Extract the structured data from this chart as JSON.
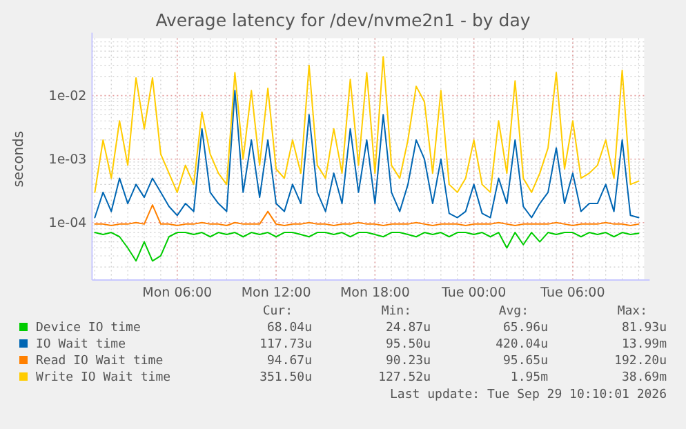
{
  "chart_data": {
    "type": "line",
    "title": "Average latency for /dev/nvme2n1 - by day",
    "ylabel": "seconds",
    "log": "y",
    "grid": true,
    "legend": "bottom",
    "marker": "none",
    "line_style": "solid",
    "xlim": [
      "2026-09-28T00:50",
      "2026-09-29T10:20"
    ],
    "xticks": [
      {
        "value": "2026-09-28T06:00",
        "label": "Mon 06:00"
      },
      {
        "value": "2026-09-28T12:00",
        "label": "Mon 12:00"
      },
      {
        "value": "2026-09-28T18:00",
        "label": "Mon 18:00"
      },
      {
        "value": "2026-09-29T00:00",
        "label": "Tue 00:00"
      },
      {
        "value": "2026-09-29T06:00",
        "label": "Tue 06:00"
      }
    ],
    "ylim": [
      1.25e-05,
      0.08
    ],
    "yticks": [
      {
        "value": 0.0001,
        "label": "1e-04"
      },
      {
        "value": 0.001,
        "label": "1e-03"
      },
      {
        "value": 0.01,
        "label": "1e-02"
      }
    ],
    "x": [
      "2026-09-28T01:00",
      "2026-09-28T01:30",
      "2026-09-28T02:00",
      "2026-09-28T02:30",
      "2026-09-28T03:00",
      "2026-09-28T03:30",
      "2026-09-28T04:00",
      "2026-09-28T04:30",
      "2026-09-28T05:00",
      "2026-09-28T05:30",
      "2026-09-28T06:00",
      "2026-09-28T06:30",
      "2026-09-28T07:00",
      "2026-09-28T07:30",
      "2026-09-28T08:00",
      "2026-09-28T08:30",
      "2026-09-28T09:00",
      "2026-09-28T09:30",
      "2026-09-28T10:00",
      "2026-09-28T10:30",
      "2026-09-28T11:00",
      "2026-09-28T11:30",
      "2026-09-28T12:00",
      "2026-09-28T12:30",
      "2026-09-28T13:00",
      "2026-09-28T13:30",
      "2026-09-28T14:00",
      "2026-09-28T14:30",
      "2026-09-28T15:00",
      "2026-09-28T15:30",
      "2026-09-28T16:00",
      "2026-09-28T16:30",
      "2026-09-28T17:00",
      "2026-09-28T17:30",
      "2026-09-28T18:00",
      "2026-09-28T18:30",
      "2026-09-28T19:00",
      "2026-09-28T19:30",
      "2026-09-28T20:00",
      "2026-09-28T20:30",
      "2026-09-28T21:00",
      "2026-09-28T21:30",
      "2026-09-28T22:00",
      "2026-09-28T22:30",
      "2026-09-28T23:00",
      "2026-09-28T23:30",
      "2026-09-29T00:00",
      "2026-09-29T00:30",
      "2026-09-29T01:00",
      "2026-09-29T01:30",
      "2026-09-29T02:00",
      "2026-09-29T02:30",
      "2026-09-29T03:00",
      "2026-09-29T03:30",
      "2026-09-29T04:00",
      "2026-09-29T04:30",
      "2026-09-29T05:00",
      "2026-09-29T05:30",
      "2026-09-29T06:00",
      "2026-09-29T06:30",
      "2026-09-29T07:00",
      "2026-09-29T07:30",
      "2026-09-29T08:00",
      "2026-09-29T08:30",
      "2026-09-29T09:00",
      "2026-09-29T09:30",
      "2026-09-29T10:00"
    ],
    "series": [
      {
        "name": "Device IO time",
        "color": "#00cc00",
        "values": [
          7e-05,
          6.5e-05,
          7e-05,
          6e-05,
          4e-05,
          2.5e-05,
          5e-05,
          2.5e-05,
          3e-05,
          6e-05,
          7e-05,
          7e-05,
          6.5e-05,
          7e-05,
          6e-05,
          7e-05,
          6.5e-05,
          7e-05,
          6e-05,
          7e-05,
          6.5e-05,
          7e-05,
          6e-05,
          7e-05,
          7e-05,
          6.5e-05,
          6e-05,
          7e-05,
          7e-05,
          6.5e-05,
          7e-05,
          6e-05,
          7e-05,
          7e-05,
          6.5e-05,
          6e-05,
          7e-05,
          7e-05,
          6.5e-05,
          6e-05,
          7e-05,
          6.5e-05,
          7e-05,
          6e-05,
          7e-05,
          7e-05,
          6.5e-05,
          7e-05,
          6e-05,
          7e-05,
          4e-05,
          7e-05,
          4.5e-05,
          7e-05,
          5e-05,
          7e-05,
          6.5e-05,
          7e-05,
          7e-05,
          6e-05,
          7e-05,
          6.5e-05,
          7e-05,
          6e-05,
          7e-05,
          6.5e-05,
          6.8e-05
        ]
      },
      {
        "name": "IO Wait time",
        "color": "#0066b3",
        "values": [
          0.00012,
          0.0003,
          0.00015,
          0.0005,
          0.0002,
          0.0004,
          0.00025,
          0.0005,
          0.0003,
          0.00018,
          0.00013,
          0.0002,
          0.00015,
          0.003,
          0.0003,
          0.0002,
          0.00015,
          0.012,
          0.0003,
          0.002,
          0.00025,
          0.002,
          0.0002,
          0.00015,
          0.0004,
          0.0002,
          0.005,
          0.0003,
          0.00015,
          0.0006,
          0.0002,
          0.003,
          0.0003,
          0.002,
          0.0002,
          0.005,
          0.0003,
          0.00015,
          0.0004,
          0.002,
          0.001,
          0.0002,
          0.001,
          0.00014,
          0.00012,
          0.00015,
          0.0004,
          0.00014,
          0.00012,
          0.0005,
          0.0002,
          0.002,
          0.00018,
          0.00012,
          0.0002,
          0.0003,
          0.0015,
          0.0002,
          0.0006,
          0.00015,
          0.0002,
          0.0002,
          0.0004,
          0.00015,
          0.002,
          0.00013,
          0.00012
        ]
      },
      {
        "name": "Read IO Wait time",
        "color": "#ff8000",
        "values": [
          9.5e-05,
          9.5e-05,
          9e-05,
          9.5e-05,
          9.5e-05,
          0.0001,
          9.5e-05,
          0.00019,
          9.5e-05,
          9.5e-05,
          9e-05,
          9.5e-05,
          9.5e-05,
          0.0001,
          9.5e-05,
          9.5e-05,
          9e-05,
          0.0001,
          9.5e-05,
          9.5e-05,
          9.5e-05,
          0.00015,
          9.5e-05,
          9e-05,
          9.5e-05,
          9.5e-05,
          0.0001,
          9.5e-05,
          9.5e-05,
          9e-05,
          9.5e-05,
          9.5e-05,
          0.0001,
          9.5e-05,
          9.5e-05,
          9e-05,
          9.5e-05,
          9.5e-05,
          9.5e-05,
          0.0001,
          9.5e-05,
          9e-05,
          9.5e-05,
          9.5e-05,
          9.5e-05,
          9e-05,
          9.5e-05,
          9.5e-05,
          9.5e-05,
          0.0001,
          9.5e-05,
          9e-05,
          9.5e-05,
          9.5e-05,
          9.5e-05,
          9.5e-05,
          0.0001,
          9.5e-05,
          9e-05,
          9.5e-05,
          9.5e-05,
          9.5e-05,
          0.0001,
          9.5e-05,
          9.5e-05,
          9e-05,
          9.5e-05
        ]
      },
      {
        "name": "Write IO Wait time",
        "color": "#ffcc00",
        "values": [
          0.0003,
          0.002,
          0.0005,
          0.004,
          0.0008,
          0.019,
          0.003,
          0.019,
          0.0012,
          0.0006,
          0.0003,
          0.0008,
          0.0004,
          0.0055,
          0.0012,
          0.0006,
          0.0004,
          0.023,
          0.001,
          0.012,
          0.0008,
          0.013,
          0.0007,
          0.0005,
          0.002,
          0.0006,
          0.03,
          0.0008,
          0.0005,
          0.003,
          0.0006,
          0.018,
          0.0008,
          0.023,
          0.0006,
          0.041,
          0.0008,
          0.0005,
          0.002,
          0.014,
          0.008,
          0.0006,
          0.012,
          0.0004,
          0.0003,
          0.0005,
          0.002,
          0.0004,
          0.0003,
          0.004,
          0.0006,
          0.017,
          0.0005,
          0.0003,
          0.0006,
          0.0015,
          0.023,
          0.0007,
          0.004,
          0.0005,
          0.0006,
          0.0008,
          0.002,
          0.0005,
          0.025,
          0.0004,
          0.00045
        ]
      }
    ],
    "annotations": [
      "Cur:",
      "Min:",
      "Avg:",
      "Max:",
      "68.04u",
      "24.87u",
      "65.96u",
      "81.93u",
      "117.73u",
      "95.50u",
      "420.04u",
      "13.99m",
      "94.67u",
      "90.23u",
      "95.65u",
      "192.20u",
      "351.50u",
      "127.52u",
      "1.95m",
      "38.69m",
      "Last update: Tue Sep 29 10:10:01 2026"
    ]
  }
}
